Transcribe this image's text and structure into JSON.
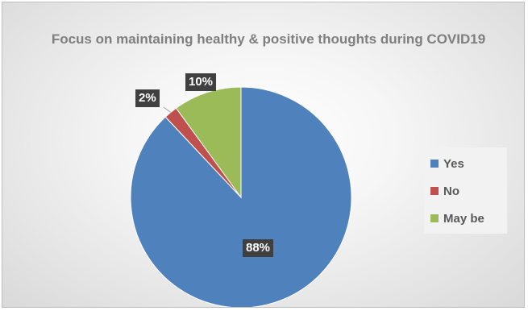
{
  "chart_data": {
    "type": "pie",
    "title": "Focus on maintaining healthy & positive thoughts during COVID19",
    "categories": [
      "Yes",
      "No",
      "May be"
    ],
    "values": [
      88,
      2,
      10
    ],
    "data_labels": [
      "88%",
      "2%",
      "10%"
    ],
    "colors": [
      "#4f81bd",
      "#c0504d",
      "#9bbb59"
    ],
    "legend_position": "right",
    "start_angle_deg": 0,
    "direction": "clockwise"
  },
  "legend": {
    "items": [
      {
        "label": "Yes",
        "color": "#4f81bd"
      },
      {
        "label": "No",
        "color": "#c0504d"
      },
      {
        "label": "May be",
        "color": "#9bbb59"
      }
    ]
  }
}
